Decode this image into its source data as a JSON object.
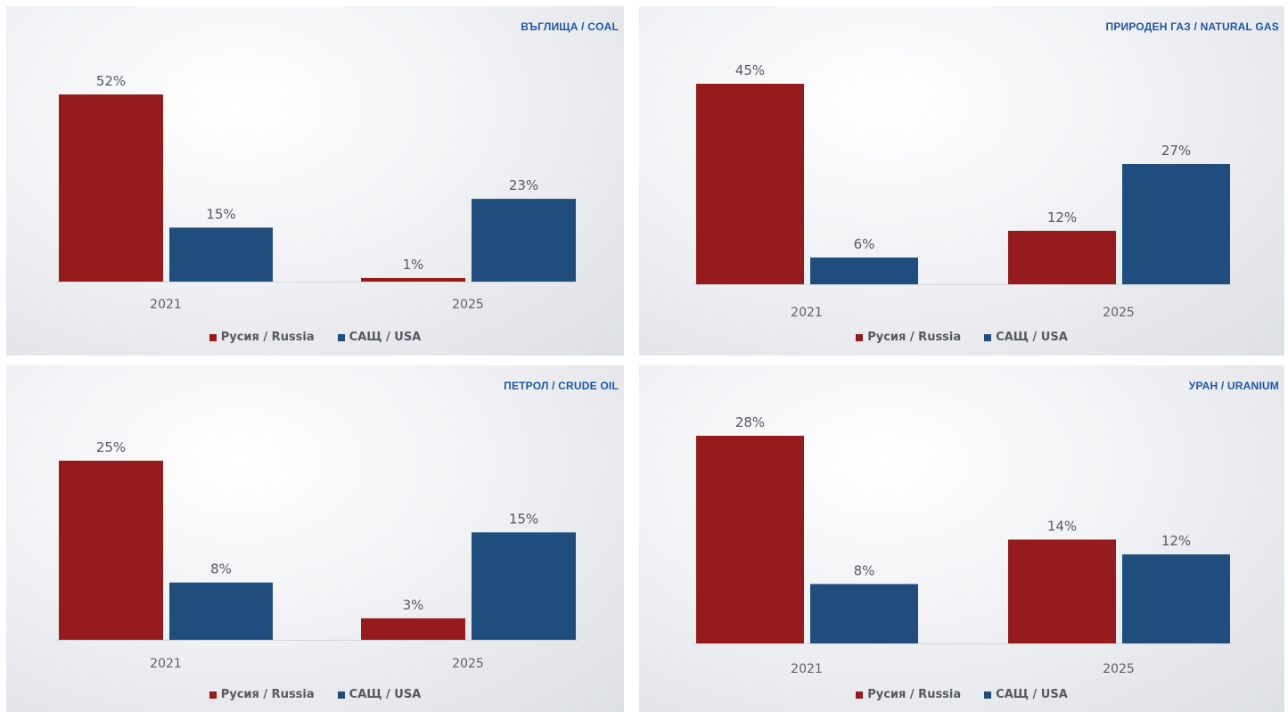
{
  "colors": {
    "russia": "#951b1d",
    "usa": "#1f4e7e",
    "title": "#1d56a8"
  },
  "chart_data": [
    {
      "type": "bar",
      "title": "ВЪГЛИЩА / COAL",
      "categories": [
        "2021",
        "2025"
      ],
      "series": [
        {
          "name": "Русия / Russia",
          "values": [
            52,
            1
          ],
          "labels": [
            "52%",
            "1%"
          ]
        },
        {
          "name": "САЩ / USA",
          "values": [
            15,
            23
          ],
          "labels": [
            "15%",
            "23%"
          ]
        }
      ],
      "ylim": [
        0,
        52
      ],
      "legend": "bottom"
    },
    {
      "type": "bar",
      "title": "ПРИРОДЕН ГАЗ / NATURAL GAS",
      "categories": [
        "2021",
        "2025"
      ],
      "series": [
        {
          "name": "Русия / Russia",
          "values": [
            45,
            12
          ],
          "labels": [
            "45%",
            "12%"
          ]
        },
        {
          "name": "САЩ / USA",
          "values": [
            6,
            27
          ],
          "labels": [
            "6%",
            "27%"
          ]
        }
      ],
      "ylim": [
        0,
        45
      ],
      "legend": "bottom"
    },
    {
      "type": "bar",
      "title": "ПЕТРОЛ / CRUDE OIL",
      "categories": [
        "2021",
        "2025"
      ],
      "series": [
        {
          "name": "Русия / Russia",
          "values": [
            25,
            3
          ],
          "labels": [
            "25%",
            "3%"
          ]
        },
        {
          "name": "САЩ / USA",
          "values": [
            8,
            15
          ],
          "labels": [
            "8%",
            "15%"
          ]
        }
      ],
      "ylim": [
        0,
        25
      ],
      "legend": "bottom"
    },
    {
      "type": "bar",
      "title": "УРАН / URANIUM",
      "categories": [
        "2021",
        "2025"
      ],
      "series": [
        {
          "name": "Русия / Russia",
          "values": [
            28,
            14
          ],
          "labels": [
            "28%",
            "14%"
          ]
        },
        {
          "name": "САЩ / USA",
          "values": [
            8,
            12
          ],
          "labels": [
            "8%",
            "12%"
          ]
        }
      ],
      "ylim": [
        0,
        28
      ],
      "legend": "bottom"
    }
  ]
}
